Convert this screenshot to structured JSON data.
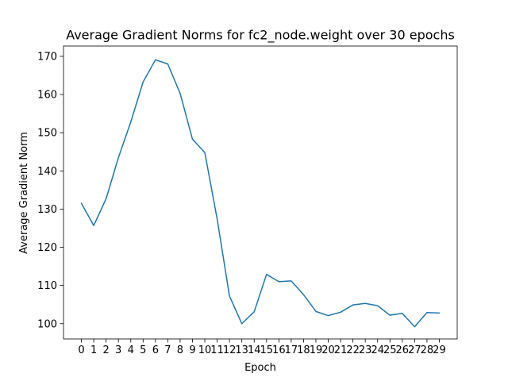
{
  "chart_data": {
    "type": "line",
    "title": "Average Gradient Norms for fc2_node.weight over 30 epochs",
    "xlabel": "Epoch",
    "ylabel": "Average Gradient Norm",
    "x": [
      0,
      1,
      2,
      3,
      4,
      5,
      6,
      7,
      8,
      9,
      10,
      11,
      12,
      13,
      14,
      15,
      16,
      17,
      18,
      19,
      20,
      21,
      22,
      23,
      24,
      25,
      26,
      27,
      28,
      29
    ],
    "x_tick_labels": [
      "0",
      "1",
      "2",
      "3",
      "4",
      "5",
      "6",
      "7",
      "8",
      "9",
      "10",
      "11",
      "12",
      "13",
      "14",
      "15",
      "16",
      "17",
      "18",
      "19",
      "20",
      "21",
      "22",
      "23",
      "24",
      "25",
      "26",
      "27",
      "28",
      "29"
    ],
    "series": [
      {
        "values": [
          131.5,
          125.7,
          132.7,
          143.5,
          152.8,
          163.3,
          169.1,
          168.0,
          160.3,
          148.3,
          144.8,
          127.4,
          107.2,
          100.0,
          103.1,
          112.9,
          111.0,
          111.2,
          107.6,
          103.2,
          102.1,
          103.0,
          104.9,
          105.3,
          104.7,
          102.2,
          102.7,
          99.2,
          102.9,
          102.8
        ],
        "color": "#1f77b4"
      }
    ],
    "y_ticks": [
      100,
      110,
      120,
      130,
      140,
      150,
      160,
      170
    ],
    "x_range": [
      -1.45,
      30.45
    ],
    "ylim": [
      96.0,
      172.7
    ],
    "grid": false,
    "legend": "none"
  }
}
